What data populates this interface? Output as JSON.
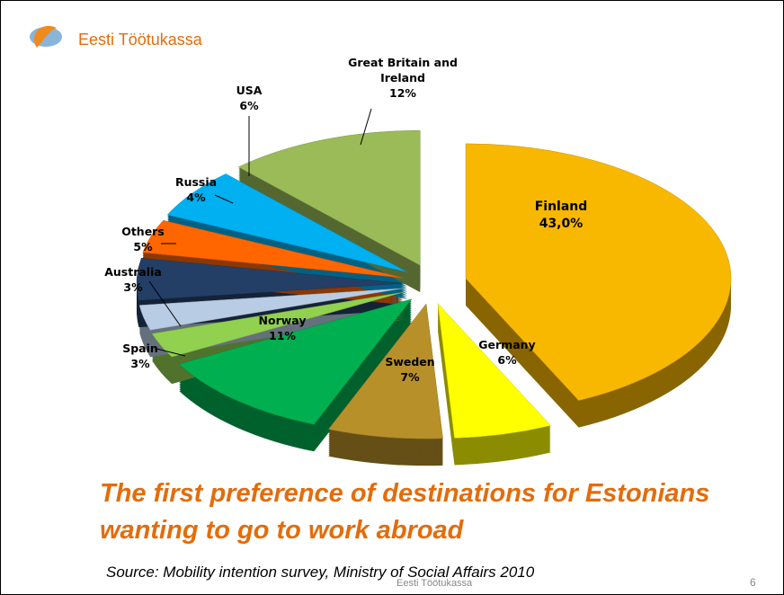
{
  "logo": "Eesti Töötukassa",
  "chart_data": {
    "type": "pie",
    "categories": [
      "Finland",
      "Germany",
      "Sweden",
      "Norway",
      "Spain",
      "Australia",
      "Others",
      "Russia",
      "USA",
      "Great Britain and Ireland"
    ],
    "values": [
      43,
      6,
      7,
      11,
      3,
      3,
      5,
      4,
      6,
      12
    ],
    "value_labels": [
      "43,0%",
      "6%",
      "7%",
      "11%",
      "3%",
      "3%",
      "5%",
      "4%",
      "6%",
      "12%"
    ],
    "colors": [
      "#f9b800",
      "#ffff00",
      "#b8902a",
      "#00b050",
      "#92d050",
      "#b8cce4",
      "#243f66",
      "#ff6600",
      "#00b0f0",
      "#9bbb59"
    ],
    "title": "The first preference of destinations for Estonians wanting to go to work abroad",
    "source": "Source: Mobility intention survey, Ministry of Social Affairs 2010"
  },
  "footer": "Eesti Töötukassa",
  "slide_number": "6"
}
